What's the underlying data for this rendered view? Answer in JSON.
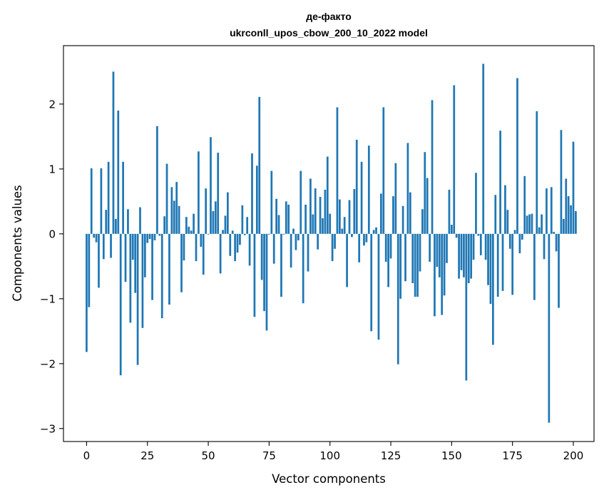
{
  "chart_data": {
    "type": "bar",
    "title_line1": "де-факто",
    "title_line2": "ukrconll_upos_cbow_200_10_2022 model",
    "xlabel": "Vector components",
    "ylabel": "Components values",
    "xlim": [
      -9.5,
      208.5
    ],
    "ylim": [
      -3.2,
      2.9
    ],
    "xticks": [
      0,
      25,
      50,
      75,
      100,
      125,
      150,
      175,
      200
    ],
    "yticks": [
      -3,
      -2,
      -1,
      0,
      1,
      2
    ],
    "ytick_labels": [
      "−3",
      "−2",
      "−1",
      "0",
      "1",
      "2"
    ],
    "bar_color": "#1f77b4",
    "grid": false,
    "values": [
      -1.82,
      -1.13,
      1.01,
      -0.06,
      -0.13,
      -0.83,
      1.01,
      -0.39,
      0.37,
      1.11,
      -0.37,
      2.5,
      0.23,
      1.9,
      -2.18,
      1.11,
      -0.74,
      0.38,
      -1.37,
      -0.4,
      -0.91,
      -2.02,
      0.41,
      -1.45,
      -0.67,
      -0.14,
      -0.08,
      -1.02,
      -0.1,
      1.66,
      -0.03,
      -1.3,
      0.27,
      1.08,
      -1.09,
      0.72,
      0.51,
      0.8,
      0.43,
      -0.9,
      -0.41,
      0.26,
      0.11,
      0.05,
      0.31,
      -0.42,
      1.27,
      -0.2,
      -0.63,
      0.7,
      -0.01,
      1.49,
      0.35,
      0.5,
      1.25,
      -0.61,
      0.06,
      0.28,
      0.64,
      -0.34,
      0.05,
      -0.42,
      -0.29,
      -0.17,
      0.44,
      -0.02,
      0.26,
      -0.49,
      1.24,
      -1.28,
      1.05,
      2.11,
      -0.71,
      -1.19,
      -1.49,
      -0.01,
      0.97,
      -0.46,
      0.54,
      0.29,
      -0.97,
      -0.01,
      0.5,
      0.45,
      -0.52,
      0.08,
      -0.25,
      -0.1,
      0.97,
      -1.07,
      0.45,
      -0.58,
      0.85,
      0.3,
      0.7,
      -0.24,
      0.57,
      0.24,
      0.68,
      1.19,
      0.31,
      -0.42,
      -0.23,
      1.95,
      0.53,
      0.08,
      0.26,
      -0.82,
      0.52,
      -0.05,
      0.69,
      1.45,
      -0.44,
      1.11,
      -0.18,
      -0.13,
      1.36,
      -1.5,
      0.06,
      0.1,
      -1.63,
      0.62,
      1.95,
      -0.43,
      -0.82,
      -0.38,
      0.58,
      1.09,
      -2.01,
      -1.0,
      0.43,
      -0.73,
      1.4,
      0.64,
      -0.76,
      -0.97,
      -0.97,
      -0.58,
      0.38,
      1.26,
      0.86,
      -0.43,
      2.06,
      -1.27,
      -0.51,
      -0.67,
      -1.25,
      -0.95,
      -0.45,
      0.68,
      0.14,
      2.29,
      -0.06,
      -0.69,
      -0.56,
      -0.67,
      -2.26,
      -0.76,
      -0.69,
      -0.4,
      0.94,
      -0.03,
      -0.33,
      2.62,
      -0.4,
      -0.79,
      -1.08,
      -1.71,
      0.6,
      -0.97,
      1.59,
      -0.88,
      0.75,
      0.37,
      -0.23,
      -0.94,
      0.06,
      2.4,
      -0.3,
      -0.09,
      0.89,
      0.28,
      0.3,
      0.31,
      -1.02,
      1.89,
      0.1,
      0.3,
      -0.39,
      0.7,
      -2.91,
      0.72,
      0.03,
      -0.27,
      -1.14,
      1.6,
      0.23,
      0.85,
      0.58,
      0.44,
      1.42,
      0.35
    ]
  }
}
